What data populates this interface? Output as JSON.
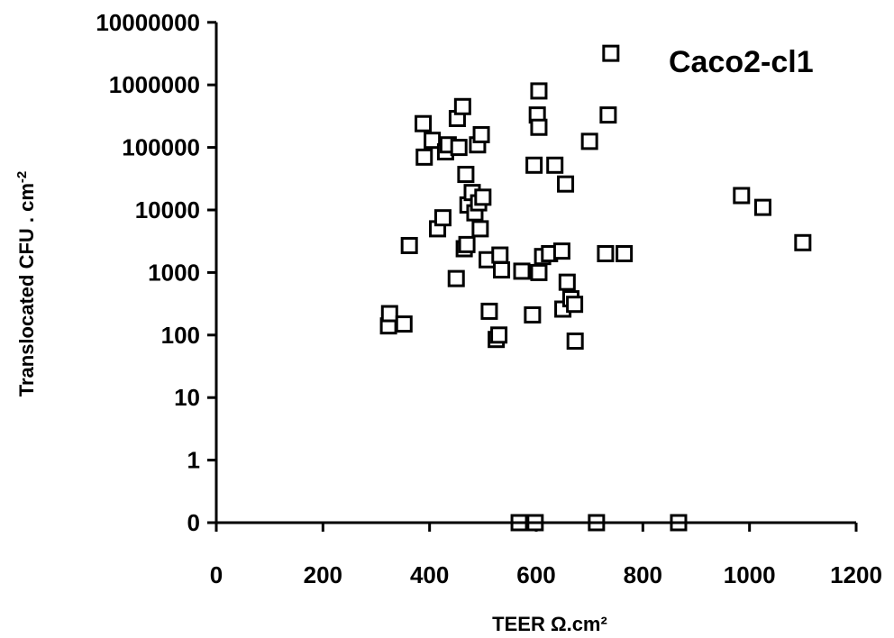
{
  "chart_data": {
    "type": "scatter",
    "title": "",
    "annotation": "Caco2-cl1",
    "xlabel": "TEER Ω.cm²",
    "ylabel_main": "Translocated CFU . cm",
    "ylabel_sup": "-2",
    "x_scale": "linear",
    "y_scale": "log",
    "xlim": [
      0,
      1200
    ],
    "x_ticks": [
      0,
      200,
      400,
      600,
      800,
      1000,
      1200
    ],
    "x_tick_labels": [
      "0",
      "200",
      "400",
      "600",
      "800",
      "1000",
      "1200"
    ],
    "y_tick_values": [
      0,
      1,
      10,
      100,
      1000,
      10000,
      100000,
      1000000,
      10000000
    ],
    "y_tick_labels": [
      "0",
      "1",
      "10",
      "100",
      "1000",
      "10000",
      "100000",
      "1000000",
      "10000000"
    ],
    "grid": false,
    "legend": "none",
    "marker": "open-square",
    "points": [
      {
        "x": 323,
        "y": 140
      },
      {
        "x": 325,
        "y": 220
      },
      {
        "x": 352,
        "y": 150
      },
      {
        "x": 362,
        "y": 2700
      },
      {
        "x": 388,
        "y": 240000
      },
      {
        "x": 390,
        "y": 70000
      },
      {
        "x": 405,
        "y": 130000
      },
      {
        "x": 415,
        "y": 5000
      },
      {
        "x": 425,
        "y": 7500
      },
      {
        "x": 430,
        "y": 85000
      },
      {
        "x": 435,
        "y": 110000
      },
      {
        "x": 450,
        "y": 800
      },
      {
        "x": 452,
        "y": 290000
      },
      {
        "x": 455,
        "y": 100000
      },
      {
        "x": 462,
        "y": 450000
      },
      {
        "x": 465,
        "y": 2400
      },
      {
        "x": 468,
        "y": 37000
      },
      {
        "x": 470,
        "y": 2800
      },
      {
        "x": 472,
        "y": 12000
      },
      {
        "x": 480,
        "y": 19000
      },
      {
        "x": 485,
        "y": 9000
      },
      {
        "x": 490,
        "y": 110000
      },
      {
        "x": 492,
        "y": 13000
      },
      {
        "x": 495,
        "y": 5000
      },
      {
        "x": 497,
        "y": 160000
      },
      {
        "x": 500,
        "y": 16000
      },
      {
        "x": 508,
        "y": 1600
      },
      {
        "x": 512,
        "y": 240
      },
      {
        "x": 525,
        "y": 85
      },
      {
        "x": 530,
        "y": 100
      },
      {
        "x": 532,
        "y": 1900
      },
      {
        "x": 535,
        "y": 1100
      },
      {
        "x": 573,
        "y": 1050
      },
      {
        "x": 593,
        "y": 210
      },
      {
        "x": 596,
        "y": 52000
      },
      {
        "x": 602,
        "y": 330000
      },
      {
        "x": 605,
        "y": 800000
      },
      {
        "x": 605,
        "y": 210000
      },
      {
        "x": 605,
        "y": 1000
      },
      {
        "x": 612,
        "y": 1800
      },
      {
        "x": 625,
        "y": 2000
      },
      {
        "x": 635,
        "y": 52000
      },
      {
        "x": 648,
        "y": 2200
      },
      {
        "x": 650,
        "y": 260
      },
      {
        "x": 655,
        "y": 26000
      },
      {
        "x": 658,
        "y": 700
      },
      {
        "x": 665,
        "y": 380
      },
      {
        "x": 672,
        "y": 310
      },
      {
        "x": 673,
        "y": 80
      },
      {
        "x": 700,
        "y": 125000
      },
      {
        "x": 730,
        "y": 2000
      },
      {
        "x": 735,
        "y": 330000
      },
      {
        "x": 740,
        "y": 3200000
      },
      {
        "x": 765,
        "y": 2000
      },
      {
        "x": 985,
        "y": 17000
      },
      {
        "x": 1025,
        "y": 11000
      },
      {
        "x": 1100,
        "y": 3000
      },
      {
        "x": 568,
        "y": 0
      },
      {
        "x": 598,
        "y": 0
      },
      {
        "x": 713,
        "y": 0
      },
      {
        "x": 867,
        "y": 0
      }
    ]
  }
}
